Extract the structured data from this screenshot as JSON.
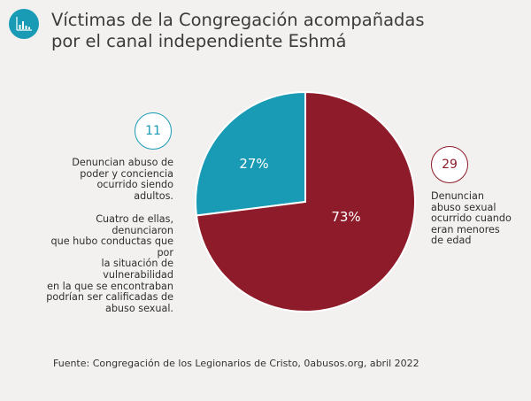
{
  "title_lines": [
    "Víctimas de la Congregación acompañadas",
    "por el canal independiente Eshmá"
  ],
  "header_icon": "bar-chart-icon",
  "colors": {
    "background": "#f3f1ef",
    "teal": "#1a9bb5",
    "maroon": "#8e1b2a"
  },
  "chart_data": {
    "type": "pie",
    "slices": [
      {
        "label": "27%",
        "value": 27,
        "count": 11,
        "color": "#1a9bb5"
      },
      {
        "label": "73%",
        "value": 73,
        "count": 29,
        "color": "#8e1b2a"
      }
    ]
  },
  "left_note": {
    "count": "11",
    "p1": [
      "Denuncian abuso de",
      "poder y conciencia",
      "ocurrido siendo",
      "adultos."
    ],
    "p2": [
      "Cuatro de ellas, denunciaron",
      "que hubo conductas que por",
      "la situación de vulnerabilidad",
      "en la que se encontraban",
      "podrían ser calificadas de",
      "abuso sexual."
    ]
  },
  "right_note": {
    "count": "29",
    "lines": [
      "Denuncian",
      "abuso sexual",
      "ocurrido cuando",
      "eran menores",
      "de edad"
    ]
  },
  "source": "Fuente: Congregación de los Legionarios de Cristo, 0abusos.org, abril 2022"
}
